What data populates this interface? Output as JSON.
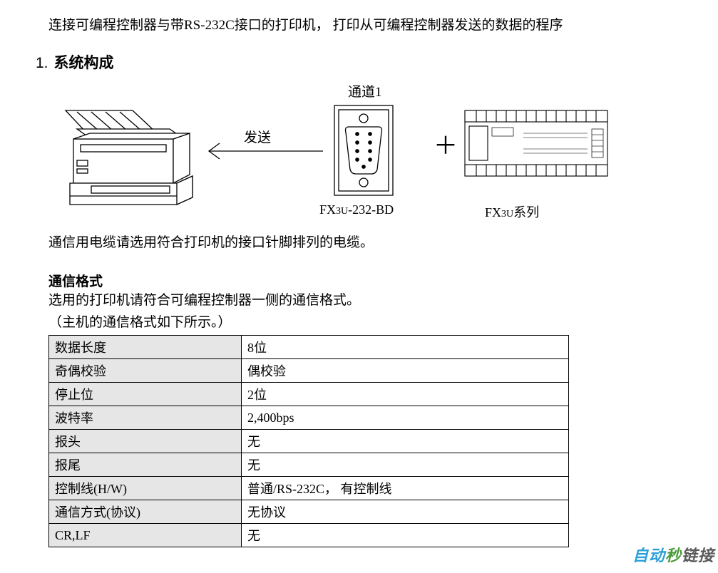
{
  "intro": "连接可编程控制器与带RS-232C接口的打印机， 打印从可编程控制器发送的数据的程序",
  "section": {
    "num": "1.",
    "title": "系统构成"
  },
  "diagram": {
    "channel_label": "通道1",
    "send_label": "发送",
    "plus": "＋",
    "connector_caption_prefix": "FX",
    "connector_caption_sub": "3U",
    "connector_caption_suffix": "-232-BD",
    "plc_caption_prefix": "FX",
    "plc_caption_sub": "3U",
    "plc_caption_suffix": "系列",
    "stroke": "#000000",
    "fill_bg": "#ffffff"
  },
  "cable_note": "通信用电缆请选用符合打印机的接口针脚排列的电缆。",
  "format": {
    "heading": "通信格式",
    "note1": "选用的打印机请符合可编程控制器一侧的通信格式。",
    "note2": "（主机的通信格式如下所示。）"
  },
  "table": {
    "header_bg": "#e6e6e6",
    "rows": [
      {
        "key": "数据长度",
        "val": "8位"
      },
      {
        "key": "奇偶校验",
        "val": "偶校验"
      },
      {
        "key": "停止位",
        "val": "2位"
      },
      {
        "key": "波特率",
        "val": "2,400bps"
      },
      {
        "key": "报头",
        "val": "无"
      },
      {
        "key": "报尾",
        "val": "无"
      },
      {
        "key": "控制线(H/W)",
        "val": "普通/RS-232C， 有控制线"
      },
      {
        "key": "通信方式(协议)",
        "val": "无协议"
      },
      {
        "key": "CR,LF",
        "val": "无"
      }
    ]
  },
  "watermark": {
    "part1": "自动",
    "part2": "秒",
    "part3": "链接"
  }
}
